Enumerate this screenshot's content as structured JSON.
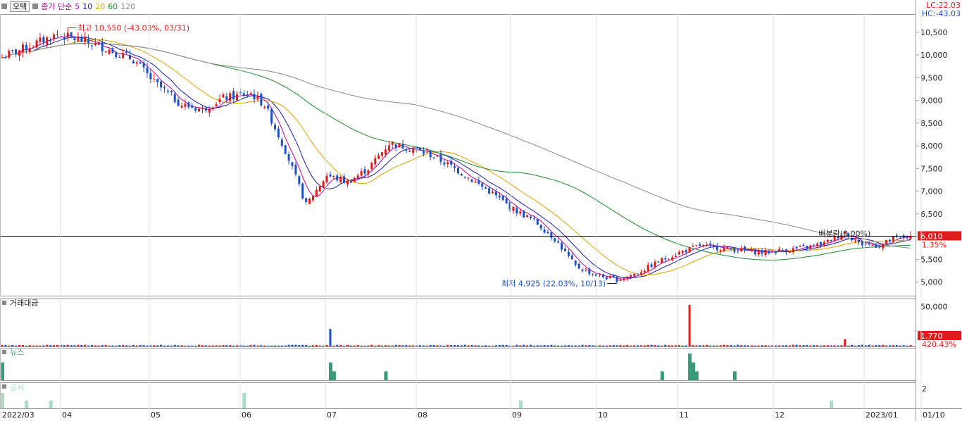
{
  "toolbar": {
    "tab_label": "오텍",
    "indicator_label": "종가 단순",
    "ma_periods": [
      "5",
      "10",
      "20",
      "60",
      "120"
    ],
    "ma_colors": [
      "#c0009a",
      "#1a1ab0",
      "#e0a000",
      "#1a8a2a",
      "#888888"
    ]
  },
  "top_right": {
    "lc": "LC:22.03",
    "hc": "HC:-43.03"
  },
  "colors": {
    "up": "#e01b1b",
    "down": "#1d4fc8",
    "news": "#3a9a7a",
    "disclosure": "#a8dcc4",
    "badge": "#e01b1b"
  },
  "price_panel": {
    "y_ticks": [
      "10,500",
      "10,000",
      "9,500",
      "9,000",
      "8,500",
      "8,000",
      "7,500",
      "7,000",
      "6,500",
      "6,000",
      "5,500",
      "5,000"
    ],
    "y_tick_values": [
      10500,
      10000,
      9500,
      9000,
      8500,
      8000,
      7500,
      7000,
      6500,
      6000,
      5500,
      5000
    ],
    "current_price": "6,010",
    "current_value": 6010,
    "current_change": "1.35%",
    "high_annotation": "최고 10,550 (-43.03%, 03/31)",
    "low_annotation": "최저 4,925 (22.03%, 10/13)",
    "mid_annotation": "배분락(0.00%)"
  },
  "volume_panel": {
    "title": "거래대금",
    "y_tick": "50,000",
    "current": "1,770",
    "current_change": "420.43%"
  },
  "news_panel": {
    "title": "뉴스"
  },
  "disclosure_panel": {
    "title": "공시",
    "y_tick": "2"
  },
  "x_axis": {
    "labels": [
      "2022/03",
      "04",
      "05",
      "06",
      "07",
      "08",
      "09",
      "10",
      "11",
      "12",
      "2023/01",
      "01/10"
    ]
  },
  "chart_data": {
    "type": "candlestick",
    "ylim": [
      4700,
      10900
    ],
    "anchors": [
      [
        0,
        9950
      ],
      [
        8,
        10200
      ],
      [
        16,
        10450
      ],
      [
        24,
        10300
      ],
      [
        30,
        10150
      ],
      [
        38,
        9900
      ],
      [
        44,
        9400
      ],
      [
        52,
        8900
      ],
      [
        58,
        8800
      ],
      [
        64,
        9050
      ],
      [
        72,
        9150
      ],
      [
        76,
        8900
      ],
      [
        82,
        7900
      ],
      [
        88,
        6700
      ],
      [
        94,
        7350
      ],
      [
        100,
        7200
      ],
      [
        106,
        7500
      ],
      [
        112,
        8050
      ],
      [
        118,
        7950
      ],
      [
        124,
        7800
      ],
      [
        130,
        7550
      ],
      [
        136,
        7250
      ],
      [
        142,
        6950
      ],
      [
        148,
        6600
      ],
      [
        154,
        6350
      ],
      [
        160,
        5950
      ],
      [
        166,
        5350
      ],
      [
        172,
        5150
      ],
      [
        178,
        5050
      ],
      [
        184,
        5200
      ],
      [
        190,
        5450
      ],
      [
        196,
        5650
      ],
      [
        202,
        5800
      ],
      [
        208,
        5750
      ],
      [
        214,
        5700
      ],
      [
        220,
        5650
      ],
      [
        226,
        5700
      ],
      [
        232,
        5750
      ],
      [
        238,
        5850
      ],
      [
        244,
        6100
      ],
      [
        248,
        5850
      ],
      [
        254,
        5800
      ],
      [
        258,
        5950
      ],
      [
        262,
        6010
      ]
    ],
    "volume": {
      "max": 60000,
      "baseline": 1500,
      "spikes": [
        [
          95,
          22000
        ],
        [
          199,
          52000
        ],
        [
          244,
          9000
        ]
      ]
    },
    "news": {
      "max": 10,
      "spikes": [
        [
          0,
          6
        ],
        [
          95,
          6
        ],
        [
          96,
          3
        ],
        [
          111,
          3
        ],
        [
          191,
          3
        ],
        [
          199,
          9
        ],
        [
          200,
          6
        ],
        [
          201,
          3
        ],
        [
          212,
          3
        ]
      ]
    },
    "disclosures": {
      "max": 3,
      "spikes": [
        [
          0,
          2
        ],
        [
          7,
          1
        ],
        [
          14,
          1
        ],
        [
          70,
          2
        ],
        [
          150,
          1
        ],
        [
          240,
          1
        ]
      ]
    }
  }
}
